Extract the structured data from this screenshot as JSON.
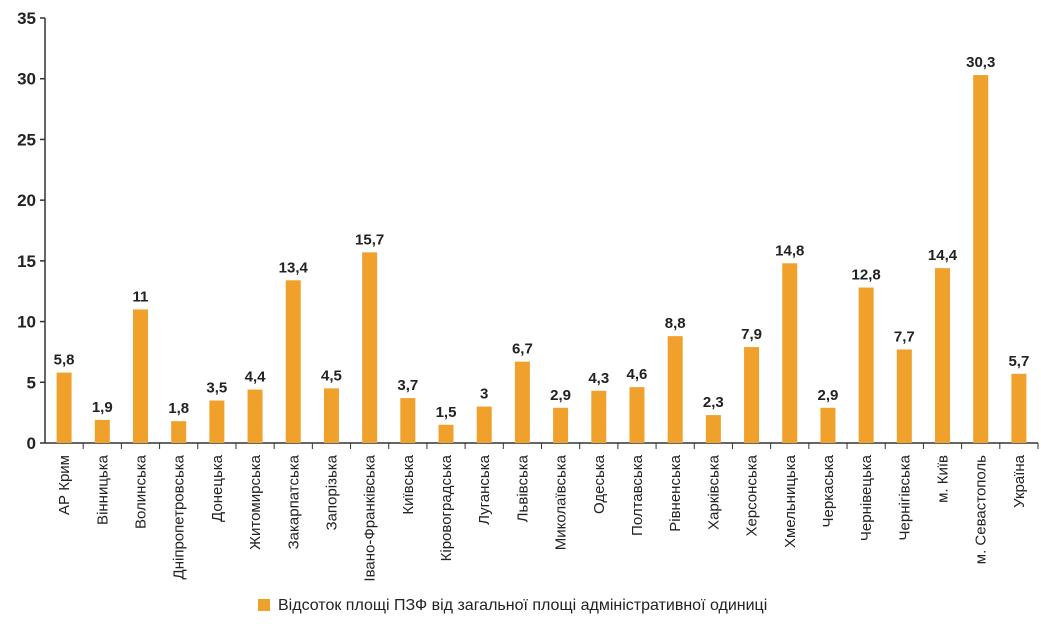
{
  "chart_data": {
    "type": "bar",
    "categories": [
      "АР Крим",
      "Вінницька",
      "Волинська",
      "Дніпропетровська",
      "Донецька",
      "Житомирська",
      "Закарпатська",
      "Запорізька",
      "Івано-Франківська",
      "Київська",
      "Кіровоградська",
      "Луганська",
      "Львівська",
      "Миколаївська",
      "Одеська",
      "Полтавська",
      "Рівненська",
      "Харківська",
      "Херсонська",
      "Хмельницька",
      "Черкаська",
      "Чернівецька",
      "Чернігівська",
      "м. Київ",
      "м. Севастополь",
      "Україна"
    ],
    "series": [
      {
        "name": "Відсоток площі ПЗФ від загальної площі адміністративної одиниці",
        "values": [
          5.8,
          1.9,
          11,
          1.8,
          3.5,
          4.4,
          13.4,
          4.5,
          15.7,
          3.7,
          1.5,
          3,
          6.7,
          2.9,
          4.3,
          4.6,
          8.8,
          2.3,
          7.9,
          14.8,
          2.9,
          12.8,
          7.7,
          14.4,
          30.3,
          5.7
        ],
        "labels": [
          "5,8",
          "1,9",
          "11",
          "1,8",
          "3,5",
          "4,4",
          "13,4",
          "4,5",
          "15,7",
          "3,7",
          "1,5",
          "3",
          "6,7",
          "2,9",
          "4,3",
          "4,6",
          "8,8",
          "2,3",
          "7,9",
          "14,8",
          "2,9",
          "12,8",
          "7,7",
          "14,4",
          "30,3",
          "5,7"
        ]
      }
    ],
    "y_ticks": [
      "0",
      "5",
      "10",
      "15",
      "20",
      "25",
      "30",
      "35"
    ],
    "ylim": [
      0,
      35
    ],
    "grid": false,
    "legend": "bottom",
    "colors": {
      "bar": "#f0a12b",
      "axis": "#333333"
    }
  }
}
